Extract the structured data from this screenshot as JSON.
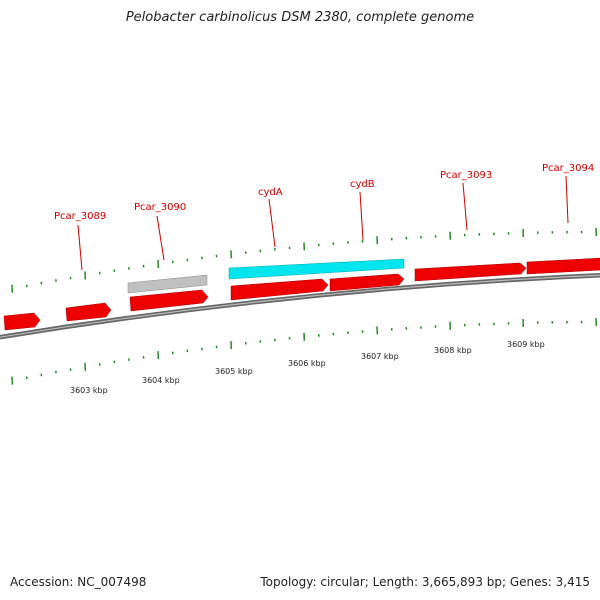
{
  "title": "Pelobacter carbinolicus DSM 2380, complete genome",
  "footer": {
    "accession": "Accession: NC_007498",
    "summary": "Topology: circular; Length: 3,665,893 bp; Genes: 3,415"
  },
  "colors": {
    "gene_forward": "#ee0000",
    "gene_highlight": "#00e5ee",
    "gene_other": "#c0c0c0",
    "tick": "#2a8a2a",
    "backbone": "#777777",
    "label": "#cc0000"
  },
  "gene_labels": [
    {
      "name": "Pcar_3089"
    },
    {
      "name": "Pcar_3090"
    },
    {
      "name": "cydA"
    },
    {
      "name": "cydB"
    },
    {
      "name": "Pcar_3093"
    },
    {
      "name": "Pcar_3094"
    }
  ],
  "kbp_labels": [
    "3603 kbp",
    "3604 kbp",
    "3605 kbp",
    "3606 kbp",
    "3607 kbp",
    "3608 kbp",
    "3609 kbp"
  ]
}
